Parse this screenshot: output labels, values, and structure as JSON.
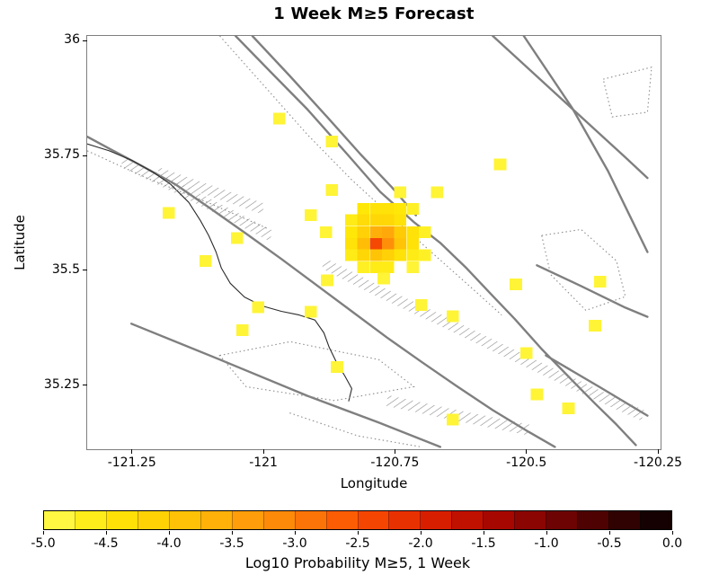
{
  "title": "1 Week M≥5 Forecast",
  "x_axis": {
    "label": "Longitude"
  },
  "y_axis": {
    "label": "Latitude"
  },
  "colorbar": {
    "label": "Log10 Probability M≥5, 1 Week",
    "tick_labels": [
      "-5.0",
      "-4.5",
      "-4.0",
      "-3.5",
      "-3.0",
      "-2.5",
      "-2.0",
      "-1.5",
      "-1.0",
      "-0.5",
      "0.0"
    ],
    "range": [
      -5,
      0
    ],
    "segments": 20
  },
  "chart_data": {
    "type": "heatmap",
    "title": "1 Week M≥5 Forecast",
    "xlabel": "Longitude",
    "ylabel": "Latitude",
    "value_label": "Log10 Probability M≥5, 1 Week",
    "lon_range": [
      -121.335,
      -120.245
    ],
    "lat_range": [
      35.111,
      36.01
    ],
    "x_ticks": [
      {
        "value": -121.25,
        "label": "-121.25"
      },
      {
        "value": -121.0,
        "label": "-121"
      },
      {
        "value": -120.75,
        "label": "-120.75"
      },
      {
        "value": -120.5,
        "label": "-120.5"
      },
      {
        "value": -120.25,
        "label": "-120.25"
      }
    ],
    "y_ticks": [
      {
        "value": 36.0,
        "label": "36"
      },
      {
        "value": 35.75,
        "label": "35.75"
      },
      {
        "value": 35.5,
        "label": "35.5"
      },
      {
        "value": 35.25,
        "label": "35.25"
      }
    ],
    "colormap": [
      [
        -5.0,
        [
          255,
          252,
          84
        ]
      ],
      [
        -4.5,
        [
          255,
          232,
          8
        ]
      ],
      [
        -4.0,
        [
          255,
          203,
          5
        ]
      ],
      [
        -3.5,
        [
          255,
          168,
          10
        ]
      ],
      [
        -3.0,
        [
          253,
          128,
          8
        ]
      ],
      [
        -2.5,
        [
          250,
          81,
          3
        ]
      ],
      [
        -2.0,
        [
          226,
          38,
          0
        ]
      ],
      [
        -1.5,
        [
          180,
          10,
          0
        ]
      ],
      [
        -1.0,
        [
          125,
          3,
          3
        ]
      ],
      [
        -0.5,
        [
          62,
          2,
          2
        ]
      ],
      [
        0.0,
        [
          7,
          0,
          0
        ]
      ]
    ],
    "cell_size": [
      0.0235,
      0.0255
    ],
    "cells": [
      [
        -120.97,
        35.83,
        -4.8
      ],
      [
        -120.87,
        35.78,
        -4.8
      ],
      [
        -120.55,
        35.73,
        -4.8
      ],
      [
        -120.87,
        35.675,
        -4.8
      ],
      [
        -120.74,
        35.67,
        -4.8
      ],
      [
        -120.67,
        35.67,
        -4.8
      ],
      [
        -121.18,
        35.625,
        -4.8
      ],
      [
        -120.91,
        35.62,
        -4.8
      ],
      [
        -121.05,
        35.57,
        -4.8
      ],
      [
        -121.11,
        35.52,
        -4.8
      ],
      [
        -121.01,
        35.42,
        -4.8
      ],
      [
        -120.91,
        35.41,
        -4.8
      ],
      [
        -121.04,
        35.37,
        -4.8
      ],
      [
        -120.86,
        35.29,
        -4.8
      ],
      [
        -120.7,
        35.425,
        -4.8
      ],
      [
        -120.64,
        35.4,
        -4.8
      ],
      [
        -120.52,
        35.47,
        -4.8
      ],
      [
        -120.36,
        35.475,
        -4.8
      ],
      [
        -120.37,
        35.38,
        -4.8
      ],
      [
        -120.5,
        35.32,
        -4.8
      ],
      [
        -120.48,
        35.23,
        -4.8
      ],
      [
        -120.42,
        35.2,
        -4.8
      ],
      [
        -120.64,
        35.175,
        -4.8
      ],
      [
        -120.881,
        35.583,
        -4.8
      ],
      [
        -120.879,
        35.478,
        -4.8
      ],
      [
        -120.81,
        35.634,
        -4.5
      ],
      [
        -120.786,
        35.634,
        -4.4
      ],
      [
        -120.763,
        35.634,
        -4.4
      ],
      [
        -120.74,
        35.634,
        -4.5
      ],
      [
        -120.716,
        35.634,
        -4.7
      ],
      [
        -120.833,
        35.609,
        -4.6
      ],
      [
        -120.81,
        35.609,
        -4.3
      ],
      [
        -120.786,
        35.609,
        -4.2
      ],
      [
        -120.763,
        35.609,
        -4.2
      ],
      [
        -120.74,
        35.609,
        -4.4
      ],
      [
        -120.833,
        35.583,
        -4.5
      ],
      [
        -120.81,
        35.583,
        -4.1
      ],
      [
        -120.786,
        35.583,
        -3.6
      ],
      [
        -120.763,
        35.583,
        -3.5
      ],
      [
        -120.74,
        35.583,
        -4.0
      ],
      [
        -120.716,
        35.583,
        -4.4
      ],
      [
        -120.693,
        35.583,
        -4.7
      ],
      [
        -120.833,
        35.558,
        -4.4
      ],
      [
        -120.81,
        35.558,
        -3.8
      ],
      [
        -120.786,
        35.558,
        -2.4
      ],
      [
        -120.763,
        35.558,
        -3.2
      ],
      [
        -120.74,
        35.558,
        -3.9
      ],
      [
        -120.716,
        35.558,
        -4.4
      ],
      [
        -120.833,
        35.533,
        -4.6
      ],
      [
        -120.81,
        35.533,
        -4.2
      ],
      [
        -120.786,
        35.533,
        -3.9
      ],
      [
        -120.763,
        35.533,
        -4.1
      ],
      [
        -120.74,
        35.533,
        -4.4
      ],
      [
        -120.716,
        35.533,
        -4.6
      ],
      [
        -120.693,
        35.533,
        -4.7
      ],
      [
        -120.81,
        35.507,
        -4.7
      ],
      [
        -120.786,
        35.507,
        -4.6
      ],
      [
        -120.763,
        35.507,
        -4.6
      ],
      [
        -120.716,
        35.507,
        -4.8
      ],
      [
        -120.771,
        35.482,
        -4.8
      ]
    ],
    "map_lines": [
      {
        "name": "main-fault",
        "style": "fault",
        "points": [
          [
            -121.053,
            36.01
          ],
          [
            -120.983,
            35.928
          ],
          [
            -120.916,
            35.85
          ],
          [
            -120.84,
            35.752
          ],
          [
            -120.778,
            35.671
          ],
          [
            -120.714,
            35.605
          ],
          [
            -120.664,
            35.56
          ],
          [
            -120.614,
            35.505
          ],
          [
            -120.567,
            35.448
          ],
          [
            -120.522,
            35.394
          ],
          [
            -120.471,
            35.329
          ],
          [
            -120.421,
            35.27
          ],
          [
            -120.371,
            35.212
          ],
          [
            -120.329,
            35.165
          ],
          [
            -120.292,
            35.12
          ]
        ]
      },
      {
        "name": "parallel-fault",
        "style": "fault",
        "points": [
          [
            -121.021,
            36.01
          ],
          [
            -120.949,
            35.922
          ],
          [
            -120.879,
            35.834
          ],
          [
            -120.815,
            35.752
          ],
          [
            -120.756,
            35.681
          ],
          [
            -120.71,
            35.62
          ]
        ]
      },
      {
        "name": "southwest-fault",
        "style": "fault",
        "points": [
          [
            -121.335,
            35.791
          ],
          [
            -121.285,
            35.76
          ],
          [
            -121.226,
            35.724
          ],
          [
            -121.167,
            35.687
          ],
          [
            -121.1,
            35.634
          ],
          [
            -121.033,
            35.58
          ],
          [
            -120.966,
            35.525
          ],
          [
            -120.899,
            35.468
          ],
          [
            -120.832,
            35.411
          ],
          [
            -120.765,
            35.354
          ],
          [
            -120.698,
            35.3
          ],
          [
            -120.631,
            35.247
          ],
          [
            -120.564,
            35.196
          ],
          [
            -120.496,
            35.149
          ],
          [
            -120.446,
            35.116
          ]
        ]
      },
      {
        "name": "south-fault",
        "style": "fault",
        "points": [
          [
            -121.251,
            35.384
          ],
          [
            -121.083,
            35.306
          ],
          [
            -120.916,
            35.227
          ],
          [
            -120.781,
            35.169
          ],
          [
            -120.664,
            35.116
          ]
        ]
      },
      {
        "name": "ne-fault-1",
        "style": "fault",
        "points": [
          [
            -120.564,
            36.01
          ],
          [
            -120.48,
            35.922
          ],
          [
            -120.396,
            35.834
          ],
          [
            -120.312,
            35.746
          ],
          [
            -120.27,
            35.701
          ]
        ]
      },
      {
        "name": "ne-fault-2",
        "style": "fault",
        "points": [
          [
            -120.505,
            36.01
          ],
          [
            -120.413,
            35.853
          ],
          [
            -120.345,
            35.716
          ],
          [
            -120.295,
            35.599
          ],
          [
            -120.27,
            35.54
          ]
        ]
      },
      {
        "name": "right-fault",
        "style": "fault",
        "points": [
          [
            -120.48,
            35.511
          ],
          [
            -120.396,
            35.466
          ],
          [
            -120.312,
            35.419
          ],
          [
            -120.27,
            35.399
          ]
        ]
      },
      {
        "name": "se-fault",
        "style": "fault",
        "points": [
          [
            -120.463,
            35.315
          ],
          [
            -120.362,
            35.247
          ],
          [
            -120.27,
            35.184
          ]
        ]
      },
      {
        "name": "hatch-band-upper",
        "style": "hatch",
        "points": [
          [
            -121.268,
            35.736
          ],
          [
            -121.167,
            35.681
          ],
          [
            -121.067,
            35.623
          ],
          [
            -120.985,
            35.575
          ]
        ]
      },
      {
        "name": "hatch-band-short",
        "style": "hatch",
        "points": [
          [
            -121.201,
            35.713
          ],
          [
            -121.1,
            35.673
          ],
          [
            -121.0,
            35.634
          ]
        ]
      },
      {
        "name": "hatch-band-lower",
        "style": "hatch",
        "points": [
          [
            -120.885,
            35.515
          ],
          [
            -120.785,
            35.457
          ],
          [
            -120.664,
            35.392
          ],
          [
            -120.564,
            35.337
          ],
          [
            -120.463,
            35.282
          ],
          [
            -120.362,
            35.227
          ],
          [
            -120.278,
            35.184
          ]
        ]
      },
      {
        "name": "hatch-band-south",
        "style": "hatch",
        "points": [
          [
            -120.765,
            35.217
          ],
          [
            -120.631,
            35.184
          ],
          [
            -120.496,
            35.153
          ]
        ]
      },
      {
        "name": "coastline",
        "style": "coast",
        "points": [
          [
            -121.335,
            35.775
          ],
          [
            -121.293,
            35.76
          ],
          [
            -121.251,
            35.74
          ],
          [
            -121.209,
            35.713
          ],
          [
            -121.176,
            35.687
          ],
          [
            -121.142,
            35.648
          ],
          [
            -121.12,
            35.609
          ],
          [
            -121.104,
            35.576
          ],
          [
            -121.09,
            35.54
          ],
          [
            -121.08,
            35.505
          ],
          [
            -121.063,
            35.472
          ],
          [
            -121.036,
            35.442
          ],
          [
            -121.003,
            35.423
          ],
          [
            -120.966,
            35.411
          ],
          [
            -120.932,
            35.403
          ],
          [
            -120.902,
            35.392
          ],
          [
            -120.885,
            35.364
          ],
          [
            -120.875,
            35.333
          ],
          [
            -120.862,
            35.302
          ],
          [
            -120.845,
            35.27
          ],
          [
            -120.832,
            35.243
          ],
          [
            -120.838,
            35.215
          ]
        ]
      },
      {
        "name": "dotted-parallel",
        "style": "dotted",
        "points": [
          [
            -121.083,
            36.01
          ],
          [
            -120.999,
            35.902
          ],
          [
            -120.916,
            35.795
          ],
          [
            -120.832,
            35.697
          ],
          [
            -120.748,
            35.609
          ],
          [
            -120.681,
            35.54
          ],
          [
            -120.614,
            35.472
          ],
          [
            -120.547,
            35.403
          ]
        ]
      },
      {
        "name": "dotted-left",
        "style": "dotted",
        "points": [
          [
            -121.335,
            35.76
          ],
          [
            -121.22,
            35.7
          ],
          [
            -121.1,
            35.645
          ],
          [
            -120.99,
            35.59
          ]
        ]
      },
      {
        "name": "dotted-bottom",
        "style": "dotted",
        "points": [
          [
            -120.95,
            35.19
          ],
          [
            -120.82,
            35.14
          ],
          [
            -120.7,
            35.116
          ]
        ]
      },
      {
        "name": "dotted-polygon-right",
        "style": "dotted",
        "closed": true,
        "points": [
          [
            -120.471,
            35.576
          ],
          [
            -120.396,
            35.589
          ],
          [
            -120.329,
            35.521
          ],
          [
            -120.312,
            35.443
          ],
          [
            -120.387,
            35.413
          ],
          [
            -120.454,
            35.491
          ]
        ]
      },
      {
        "name": "dotted-polygon-bottomleft",
        "style": "dotted",
        "closed": true,
        "points": [
          [
            -121.083,
            35.315
          ],
          [
            -120.949,
            35.345
          ],
          [
            -120.781,
            35.306
          ],
          [
            -120.714,
            35.247
          ],
          [
            -120.865,
            35.217
          ],
          [
            -121.033,
            35.247
          ]
        ]
      },
      {
        "name": "dotted-polygon-topright",
        "style": "dotted",
        "closed": true,
        "points": [
          [
            -120.354,
            35.916
          ],
          [
            -120.262,
            35.942
          ],
          [
            -120.27,
            35.844
          ],
          [
            -120.337,
            35.834
          ]
        ]
      }
    ]
  }
}
